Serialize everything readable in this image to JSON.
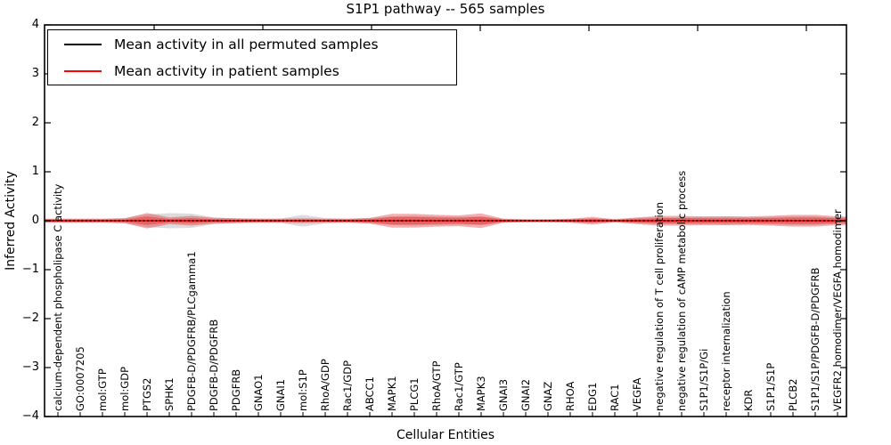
{
  "chart_data": {
    "type": "line",
    "title": "S1P1 pathway -- 565 samples",
    "xlabel": "Cellular Entities",
    "ylabel": "Inferred Activity",
    "ylim": [
      -4,
      4
    ],
    "ytick_labels": [
      "4",
      "3",
      "2",
      "1",
      "0",
      "−1",
      "−2",
      "−3",
      "−4"
    ],
    "grid": false,
    "legend_position": "upper left",
    "categories": [
      "calcium-dependent phospholipase C activity",
      "GO:0007205",
      "mol:GTP",
      "mol:GDP",
      "PTGS2",
      "SPHK1",
      "PDGFB-D/PDGFRB/PLCgamma1",
      "PDGFB-D/PDGFRB",
      "PDGFRB",
      "GNAO1",
      "GNAI1",
      "mol:S1P",
      "RhoA/GDP",
      "Rac1/GDP",
      "ABCC1",
      "MAPK1",
      "PLCG1",
      "RhoA/GTP",
      "Rac1/GTP",
      "MAPK3",
      "GNAI3",
      "GNAI2",
      "GNAZ",
      "RHOA",
      "EDG1",
      "RAC1",
      "VEGFA",
      "negative regulation of T cell proliferation",
      "negative regulation of cAMP metabolic process",
      "S1P1/S1P/Gi",
      "receptor internalization",
      "KDR",
      "S1P1/S1P",
      "PLCB2",
      "S1P1/S1P/PDGFB-D/PDGFRB",
      "VEGFR2 homodimer/VEGFA homodimer"
    ],
    "series": [
      {
        "name": "Mean activity in all permuted samples",
        "color": "#000000",
        "line_style": "dotted",
        "values": [
          0,
          0,
          0,
          0,
          0,
          0,
          0,
          0,
          0,
          0,
          0,
          0,
          0,
          0,
          0,
          0,
          0,
          0,
          0,
          0,
          0,
          0,
          0,
          0,
          0,
          0,
          0,
          0,
          0,
          0,
          0,
          0,
          0,
          0,
          0,
          0
        ],
        "band_halfwidth": [
          0.04,
          0.04,
          0.04,
          0.055,
          0.13,
          0.155,
          0.145,
          0.07,
          0.045,
          0.045,
          0.045,
          0.12,
          0.055,
          0.04,
          0.055,
          0.09,
          0.1,
          0.09,
          0.08,
          0.09,
          0.04,
          0.03,
          0.03,
          0.04,
          0.045,
          0.04,
          0.055,
          0.07,
          0.07,
          0.08,
          0.09,
          0.07,
          0.08,
          0.09,
          0.09,
          0.07
        ],
        "band_color": "#bfbfbf"
      },
      {
        "name": "Mean activity in patient samples",
        "color": "#ee1111",
        "line_style": "solid",
        "values": [
          0,
          0,
          0,
          0,
          0,
          0,
          0,
          0,
          0,
          0,
          0,
          0,
          0,
          0,
          0,
          0,
          0,
          0,
          0,
          0,
          0,
          0,
          0,
          0,
          0,
          0,
          0,
          0,
          0,
          0,
          0,
          0,
          0,
          0,
          0,
          0
        ],
        "band_halfwidth": [
          0.04,
          0.04,
          0.04,
          0.05,
          0.16,
          0.07,
          0.1,
          0.06,
          0.05,
          0.04,
          0.04,
          0.05,
          0.04,
          0.04,
          0.06,
          0.14,
          0.14,
          0.12,
          0.11,
          0.15,
          0.04,
          0.03,
          0.03,
          0.04,
          0.08,
          0.03,
          0.07,
          0.1,
          0.1,
          0.09,
          0.09,
          0.09,
          0.1,
          0.12,
          0.12,
          0.09
        ],
        "band_color": "#e41a1c"
      }
    ]
  },
  "legend": {
    "items": [
      {
        "label": "Mean activity in all permuted samples",
        "color": "#000000"
      },
      {
        "label": "Mean activity in patient samples",
        "color": "#ff0000"
      }
    ]
  }
}
